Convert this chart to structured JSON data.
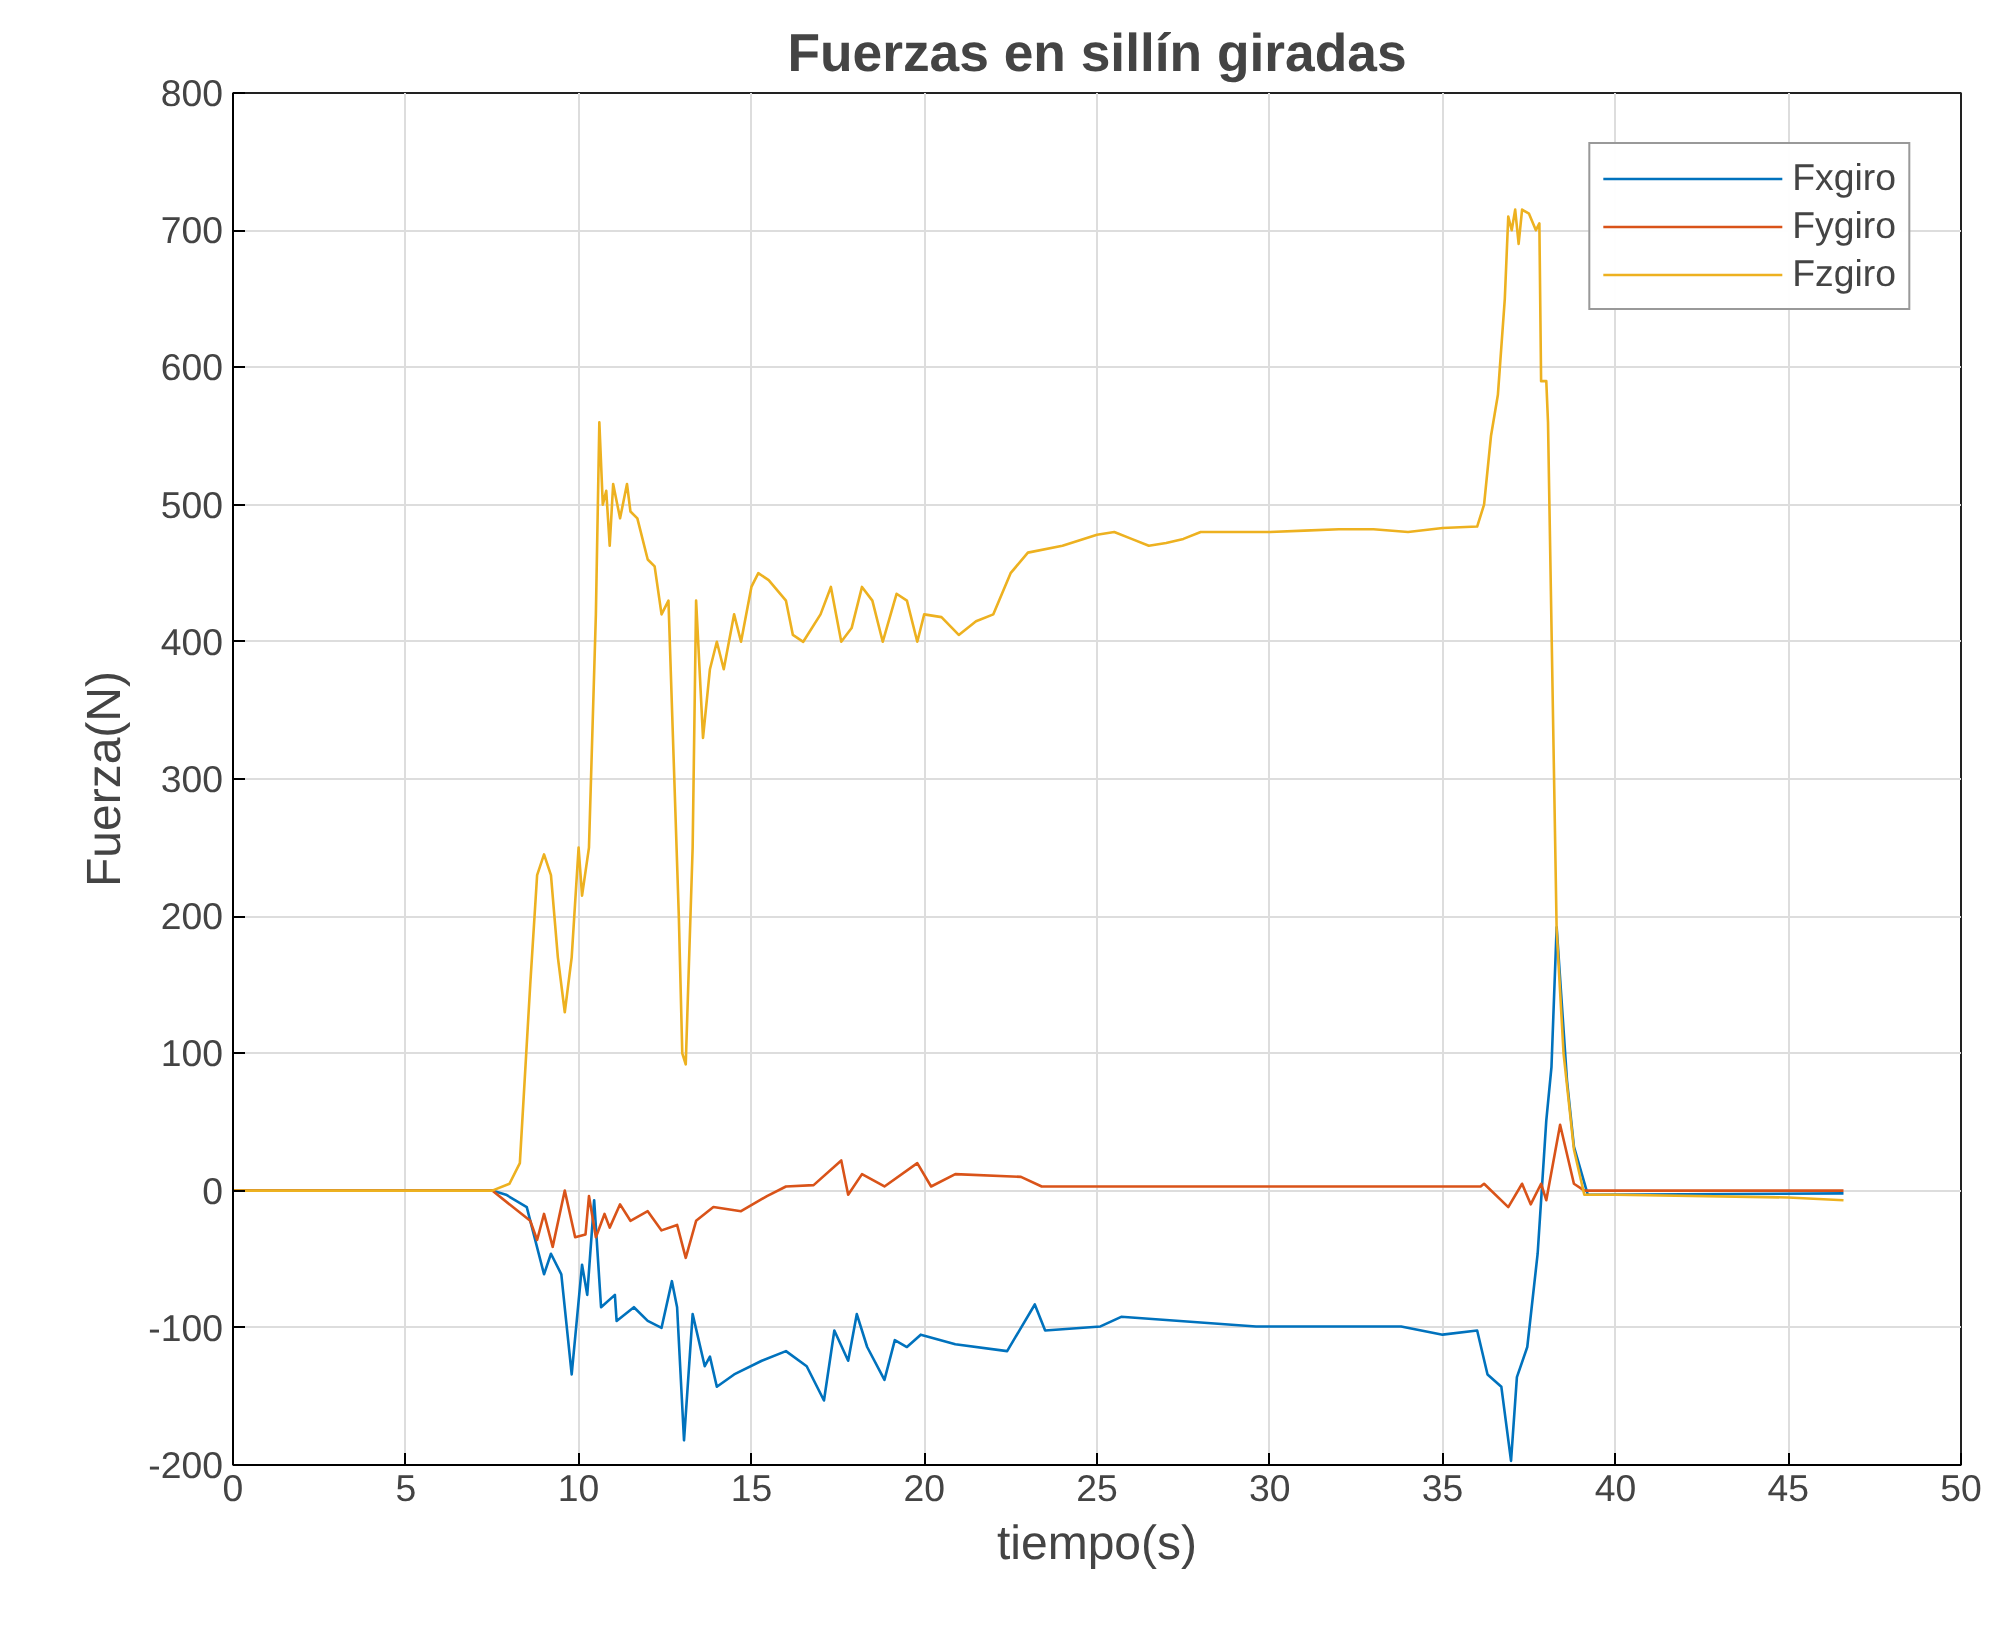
{
  "chart_data": {
    "type": "line",
    "title": "Fuerzas en sillín giradas",
    "xlabel": "tiempo(s)",
    "ylabel": "Fuerza(N)",
    "xlim": [
      0,
      50
    ],
    "ylim": [
      -200,
      800
    ],
    "xticks": [
      0,
      5,
      10,
      15,
      20,
      25,
      30,
      35,
      40,
      45,
      50
    ],
    "yticks": [
      -200,
      -100,
      0,
      100,
      200,
      300,
      400,
      500,
      600,
      700,
      800
    ],
    "grid": true,
    "legend": "top right",
    "line_style": "solid",
    "marker": "none",
    "series": [
      {
        "name": "Fxgiro",
        "color": "#0072bd",
        "x": [
          0,
          7.5,
          7.9,
          8.5,
          9.0,
          9.2,
          9.5,
          9.8,
          10.1,
          10.25,
          10.45,
          10.65,
          11.05,
          11.1,
          11.6,
          12.0,
          12.4,
          12.7,
          12.85,
          13.05,
          13.3,
          13.65,
          13.8,
          14.0,
          14.5,
          15.3,
          16.0,
          16.6,
          17.1,
          17.4,
          17.8,
          18.05,
          18.35,
          18.85,
          19.15,
          19.5,
          19.9,
          20.9,
          22.4,
          23.2,
          23.5,
          25.1,
          25.7,
          29.6,
          33.8,
          35.0,
          36.0,
          36.3,
          36.7,
          36.98,
          37.15,
          37.45,
          37.75,
          38.0,
          38.15,
          38.3,
          38.6,
          38.8,
          39.2,
          46.6
        ],
        "values": [
          0,
          0,
          -3,
          -12,
          -61,
          -46,
          -61,
          -134,
          -54,
          -76,
          -7,
          -85,
          -76,
          -95,
          -85,
          -95,
          -100,
          -66,
          -85,
          -182,
          -90,
          -128,
          -121,
          -143,
          -134,
          -124,
          -117,
          -128,
          -153,
          -102,
          -124,
          -90,
          -114,
          -138,
          -109,
          -114,
          -105,
          -112,
          -117,
          -83,
          -102,
          -99,
          -92,
          -99,
          -99,
          -105,
          -102,
          -134,
          -143,
          -197,
          -136,
          -114,
          -46,
          51,
          90,
          192,
          80,
          32,
          -3,
          -2
        ]
      },
      {
        "name": "Fygiro",
        "color": "#d95319",
        "x": [
          0,
          7.5,
          8.6,
          8.8,
          9.0,
          9.25,
          9.6,
          9.9,
          10.2,
          10.3,
          10.5,
          10.75,
          10.9,
          11.2,
          11.5,
          12.0,
          12.4,
          12.85,
          13.1,
          13.4,
          13.9,
          14.7,
          15.45,
          16.0,
          16.8,
          17.6,
          17.8,
          18.2,
          18.85,
          19.8,
          20.2,
          20.9,
          22.8,
          23.4,
          29.6,
          36.1,
          36.2,
          36.9,
          37.3,
          37.55,
          37.85,
          38.0,
          38.4,
          38.8,
          39.1,
          46.6
        ],
        "values": [
          0,
          0,
          -22,
          -36,
          -17,
          -41,
          0,
          -34,
          -32,
          -4,
          -34,
          -17,
          -27,
          -10,
          -22,
          -15,
          -29,
          -25,
          -49,
          -22,
          -12,
          -15,
          -4,
          3,
          4,
          22,
          -3,
          12,
          3,
          20,
          3,
          12,
          10,
          3,
          3,
          3,
          5,
          -12,
          5,
          -10,
          5,
          -7,
          48,
          5,
          0,
          0
        ]
      },
      {
        "name": "Fzgiro",
        "color": "#edb120",
        "x": [
          0,
          7.5,
          8.0,
          8.3,
          8.6,
          8.8,
          9.0,
          9.2,
          9.4,
          9.6,
          9.8,
          10.0,
          10.1,
          10.3,
          10.5,
          10.6,
          10.7,
          10.8,
          10.9,
          11.0,
          11.2,
          11.4,
          11.5,
          11.7,
          12.0,
          12.2,
          12.4,
          12.6,
          12.9,
          13.0,
          13.1,
          13.3,
          13.4,
          13.6,
          13.8,
          14.0,
          14.2,
          14.5,
          14.7,
          15.0,
          15.2,
          15.5,
          16.0,
          16.2,
          16.5,
          17.0,
          17.3,
          17.6,
          17.9,
          18.2,
          18.5,
          18.8,
          19.2,
          19.5,
          19.8,
          20.0,
          20.5,
          21.0,
          21.5,
          22.0,
          22.5,
          23.0,
          24.0,
          25.0,
          25.5,
          26.0,
          26.5,
          27.0,
          27.5,
          28.0,
          29.0,
          30.0,
          31.0,
          32.0,
          33.0,
          34.0,
          35.0,
          36.0,
          36.2,
          36.4,
          36.6,
          36.8,
          36.9,
          37.0,
          37.1,
          37.2,
          37.3,
          37.5,
          37.7,
          37.8,
          37.85,
          38.0,
          38.05,
          38.3,
          38.5,
          38.8,
          39.1,
          40.0,
          45.0,
          46.6
        ],
        "values": [
          0,
          0,
          5,
          20,
          150,
          230,
          245,
          230,
          170,
          130,
          170,
          250,
          215,
          250,
          420,
          560,
          500,
          510,
          470,
          515,
          490,
          515,
          495,
          490,
          460,
          455,
          420,
          430,
          200,
          100,
          92,
          250,
          430,
          330,
          380,
          400,
          380,
          420,
          400,
          440,
          450,
          445,
          430,
          405,
          400,
          420,
          440,
          400,
          410,
          440,
          430,
          400,
          435,
          430,
          400,
          420,
          418,
          405,
          415,
          420,
          450,
          465,
          470,
          478,
          480,
          475,
          470,
          472,
          475,
          480,
          480,
          480,
          481,
          482,
          482,
          480,
          483,
          484,
          500,
          550,
          580,
          650,
          710,
          700,
          715,
          690,
          715,
          712,
          700,
          705,
          590,
          590,
          560,
          190,
          100,
          30,
          -3,
          -3,
          -5,
          -7
        ]
      }
    ]
  }
}
